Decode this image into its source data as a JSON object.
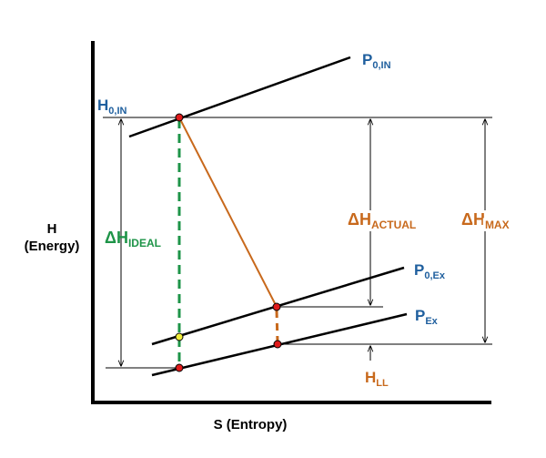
{
  "axes": {
    "y_label_line1": "H",
    "y_label_line2": "(Energy)",
    "x_label": "S (Entropy)"
  },
  "labels": {
    "h0in": {
      "main": "H",
      "sub": "0,IN"
    },
    "p0in": {
      "main": "P",
      "sub": "0,IN"
    },
    "p0ex": {
      "main": "P",
      "sub": "0,Ex"
    },
    "pex": {
      "main": "P",
      "sub": "Ex"
    },
    "dh_ideal": {
      "main": "ΔH",
      "sub": "IDEAL"
    },
    "dh_actual": {
      "main": "ΔH",
      "sub": "ACTUAL"
    },
    "dh_max": {
      "main": "ΔH",
      "sub": "MAX"
    },
    "hll": {
      "main": "H",
      "sub": "LL"
    }
  },
  "colors": {
    "pressure_label": "#1f5f9e",
    "actual": "#c8691c",
    "ideal": "#1e9448",
    "point_red": "#e01b1b",
    "point_yellow": "#f2ee3a"
  },
  "curves": [
    "isobar P0,IN",
    "isobar P0,Ex",
    "isobar PEx"
  ]
}
